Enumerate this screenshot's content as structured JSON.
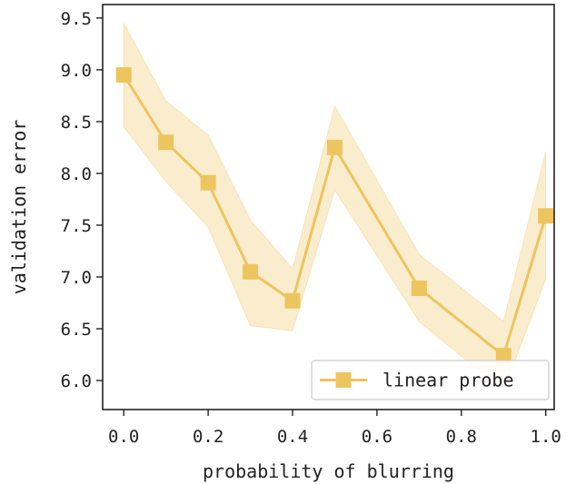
{
  "chart_data": {
    "type": "line",
    "title": "",
    "xlabel": "probability of blurring",
    "ylabel": "validation error",
    "xlim": [
      -0.05,
      1.02
    ],
    "ylim": [
      5.72,
      9.63
    ],
    "x_ticks": [
      0.0,
      0.2,
      0.4,
      0.6,
      0.8,
      1.0
    ],
    "x_tick_labels": [
      "0.0",
      "0.2",
      "0.4",
      "0.6",
      "0.8",
      "1.0"
    ],
    "y_ticks": [
      6.0,
      6.5,
      7.0,
      7.5,
      8.0,
      8.5,
      9.0,
      9.5
    ],
    "y_tick_labels": [
      "6.0",
      "6.5",
      "7.0",
      "7.5",
      "8.0",
      "8.5",
      "9.0",
      "9.5"
    ],
    "grid": false,
    "legend": {
      "position": "bottom-right",
      "entries": [
        "linear probe"
      ]
    },
    "series": [
      {
        "name": "linear probe",
        "color": "#EDC55E",
        "marker": "square",
        "x": [
          0.0,
          0.1,
          0.2,
          0.3,
          0.4,
          0.5,
          0.7,
          0.9,
          1.0
        ],
        "y": [
          8.95,
          8.3,
          7.91,
          7.05,
          6.77,
          8.25,
          6.89,
          6.24,
          7.59
        ],
        "upper": [
          9.45,
          8.7,
          8.37,
          7.55,
          7.08,
          8.65,
          7.22,
          6.57,
          8.21
        ],
        "lower": [
          8.45,
          7.92,
          7.48,
          6.53,
          6.48,
          7.84,
          6.57,
          5.9,
          6.98
        ]
      }
    ]
  }
}
